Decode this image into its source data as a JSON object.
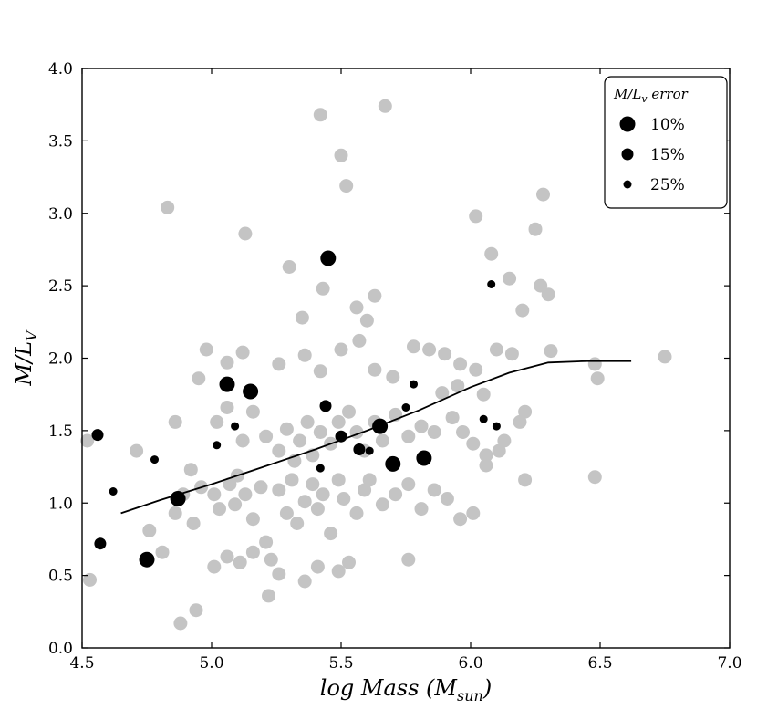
{
  "chart_data": {
    "type": "scatter",
    "title": "",
    "xlabel": {
      "pre": "log Mass (M",
      "sub": "sun",
      "post": ")"
    },
    "ylabel": {
      "pre": "M/L",
      "sub": "V"
    },
    "xlim": [
      4.5,
      7.0
    ],
    "ylim": [
      0.0,
      4.0
    ],
    "xticks": [
      4.5,
      5.0,
      5.5,
      6.0,
      6.5,
      7.0
    ],
    "xtick_labels": [
      "4.5",
      "5.0",
      "5.5",
      "6.0",
      "6.5",
      "7.0"
    ],
    "yticks": [
      0.0,
      0.5,
      1.0,
      1.5,
      2.0,
      2.5,
      3.0,
      3.5,
      4.0
    ],
    "ytick_labels": [
      "0.0",
      "0.5",
      "1.0",
      "1.5",
      "2.0",
      "2.5",
      "3.0",
      "3.5",
      "4.0"
    ],
    "grid": false,
    "colors": {
      "gray_marker": "#c4c4c4",
      "black_marker": "#000000",
      "line": "#000000",
      "axis": "#000000",
      "legend_border": "#000000",
      "background": "#ffffff"
    },
    "legend": {
      "position": "upper right",
      "title": {
        "pre": "M/L",
        "sub": "v",
        "post": " error"
      },
      "entries": [
        {
          "label": "10%",
          "radius": 8.5
        },
        {
          "label": "15%",
          "radius": 6.5
        },
        {
          "label": "25%",
          "radius": 4.5
        }
      ]
    },
    "series": [
      {
        "name": "gray-points",
        "color": "#c4c4c4",
        "marker_radius": 7.5,
        "points": [
          [
            5.42,
            3.68
          ],
          [
            5.67,
            3.74
          ],
          [
            5.5,
            3.4
          ],
          [
            5.52,
            3.19
          ],
          [
            4.83,
            3.04
          ],
          [
            6.28,
            3.13
          ],
          [
            6.25,
            2.89
          ],
          [
            6.02,
            2.98
          ],
          [
            5.13,
            2.86
          ],
          [
            6.08,
            2.72
          ],
          [
            5.3,
            2.63
          ],
          [
            6.15,
            2.55
          ],
          [
            6.27,
            2.5
          ],
          [
            6.3,
            2.44
          ],
          [
            5.43,
            2.48
          ],
          [
            5.63,
            2.43
          ],
          [
            5.56,
            2.35
          ],
          [
            5.6,
            2.26
          ],
          [
            5.35,
            2.28
          ],
          [
            6.2,
            2.33
          ],
          [
            4.98,
            2.06
          ],
          [
            5.06,
            1.97
          ],
          [
            5.12,
            2.04
          ],
          [
            4.95,
            1.86
          ],
          [
            5.26,
            1.96
          ],
          [
            5.36,
            2.02
          ],
          [
            5.42,
            1.91
          ],
          [
            5.5,
            2.06
          ],
          [
            5.57,
            2.12
          ],
          [
            5.63,
            1.92
          ],
          [
            5.78,
            2.08
          ],
          [
            5.84,
            2.06
          ],
          [
            5.9,
            2.03
          ],
          [
            5.96,
            1.96
          ],
          [
            6.02,
            1.92
          ],
          [
            6.1,
            2.06
          ],
          [
            6.16,
            2.03
          ],
          [
            6.31,
            2.05
          ],
          [
            6.48,
            1.96
          ],
          [
            6.49,
            1.86
          ],
          [
            6.75,
            2.01
          ],
          [
            5.7,
            1.87
          ],
          [
            5.95,
            1.81
          ],
          [
            6.05,
            1.75
          ],
          [
            4.52,
            1.43
          ],
          [
            4.71,
            1.36
          ],
          [
            4.86,
            1.56
          ],
          [
            4.92,
            1.23
          ],
          [
            5.02,
            1.56
          ],
          [
            5.06,
            1.66
          ],
          [
            5.1,
            1.19
          ],
          [
            5.12,
            1.43
          ],
          [
            5.16,
            1.63
          ],
          [
            5.21,
            1.46
          ],
          [
            5.26,
            1.36
          ],
          [
            5.29,
            1.51
          ],
          [
            5.32,
            1.29
          ],
          [
            5.34,
            1.43
          ],
          [
            5.37,
            1.56
          ],
          [
            5.39,
            1.33
          ],
          [
            5.42,
            1.49
          ],
          [
            5.46,
            1.41
          ],
          [
            5.49,
            1.56
          ],
          [
            5.53,
            1.63
          ],
          [
            5.56,
            1.49
          ],
          [
            5.59,
            1.36
          ],
          [
            5.63,
            1.56
          ],
          [
            5.66,
            1.43
          ],
          [
            5.71,
            1.61
          ],
          [
            5.76,
            1.46
          ],
          [
            5.81,
            1.53
          ],
          [
            5.86,
            1.49
          ],
          [
            5.89,
            1.76
          ],
          [
            5.93,
            1.59
          ],
          [
            5.97,
            1.49
          ],
          [
            6.01,
            1.41
          ],
          [
            6.06,
            1.33
          ],
          [
            6.13,
            1.43
          ],
          [
            6.19,
            1.56
          ],
          [
            6.21,
            1.63
          ],
          [
            6.48,
            1.18
          ],
          [
            4.53,
            0.47
          ],
          [
            4.76,
            0.81
          ],
          [
            4.81,
            0.66
          ],
          [
            4.86,
            0.93
          ],
          [
            4.89,
            1.06
          ],
          [
            4.93,
            0.86
          ],
          [
            4.96,
            1.11
          ],
          [
            5.01,
            1.06
          ],
          [
            5.03,
            0.96
          ],
          [
            5.07,
            1.13
          ],
          [
            5.09,
            0.99
          ],
          [
            5.13,
            1.06
          ],
          [
            5.16,
            0.89
          ],
          [
            5.19,
            1.11
          ],
          [
            5.21,
            0.73
          ],
          [
            5.23,
            0.61
          ],
          [
            5.26,
            1.09
          ],
          [
            5.29,
            0.93
          ],
          [
            5.31,
            1.16
          ],
          [
            5.33,
            0.86
          ],
          [
            5.36,
            1.01
          ],
          [
            5.39,
            1.13
          ],
          [
            5.41,
            0.96
          ],
          [
            5.43,
            1.06
          ],
          [
            5.46,
            0.79
          ],
          [
            5.49,
            1.16
          ],
          [
            5.51,
            1.03
          ],
          [
            5.56,
            0.93
          ],
          [
            5.59,
            1.09
          ],
          [
            5.61,
            1.16
          ],
          [
            5.66,
            0.99
          ],
          [
            5.71,
            1.06
          ],
          [
            5.76,
            1.13
          ],
          [
            5.81,
            0.96
          ],
          [
            5.86,
            1.09
          ],
          [
            5.91,
            1.03
          ],
          [
            5.96,
            0.89
          ],
          [
            6.01,
            0.93
          ],
          [
            6.06,
            1.26
          ],
          [
            6.11,
            1.36
          ],
          [
            6.21,
            1.16
          ],
          [
            5.01,
            0.56
          ],
          [
            5.06,
            0.63
          ],
          [
            5.11,
            0.59
          ],
          [
            5.16,
            0.66
          ],
          [
            5.26,
            0.51
          ],
          [
            5.36,
            0.46
          ],
          [
            5.41,
            0.56
          ],
          [
            5.49,
            0.53
          ],
          [
            5.53,
            0.59
          ],
          [
            5.76,
            0.61
          ],
          [
            4.88,
            0.17
          ],
          [
            4.94,
            0.26
          ],
          [
            5.22,
            0.36
          ]
        ]
      },
      {
        "name": "black-points-10pct-error",
        "color": "#000000",
        "marker_radius": 8.5,
        "points": [
          [
            4.75,
            0.61
          ],
          [
            4.87,
            1.03
          ],
          [
            5.06,
            1.82
          ],
          [
            5.15,
            1.77
          ],
          [
            5.45,
            2.69
          ],
          [
            5.65,
            1.53
          ],
          [
            5.7,
            1.27
          ],
          [
            5.82,
            1.31
          ]
        ]
      },
      {
        "name": "black-points-15pct-error",
        "color": "#000000",
        "marker_radius": 6.5,
        "points": [
          [
            4.56,
            1.47
          ],
          [
            4.57,
            0.72
          ],
          [
            5.44,
            1.67
          ],
          [
            5.5,
            1.46
          ],
          [
            5.57,
            1.37
          ]
        ]
      },
      {
        "name": "black-points-25pct-error",
        "color": "#000000",
        "marker_radius": 4.5,
        "points": [
          [
            4.62,
            1.08
          ],
          [
            4.78,
            1.3
          ],
          [
            5.02,
            1.4
          ],
          [
            5.09,
            1.53
          ],
          [
            5.42,
            1.24
          ],
          [
            5.61,
            1.36
          ],
          [
            5.75,
            1.66
          ],
          [
            5.78,
            1.82
          ],
          [
            6.05,
            1.58
          ],
          [
            6.08,
            2.51
          ],
          [
            6.1,
            1.53
          ]
        ]
      }
    ],
    "trend_line": {
      "name": "model-line",
      "color": "#000000",
      "width": 1.8,
      "points": [
        [
          4.65,
          0.93
        ],
        [
          4.8,
          1.02
        ],
        [
          5.0,
          1.13
        ],
        [
          5.2,
          1.25
        ],
        [
          5.4,
          1.37
        ],
        [
          5.6,
          1.5
        ],
        [
          5.8,
          1.64
        ],
        [
          6.0,
          1.8
        ],
        [
          6.15,
          1.9
        ],
        [
          6.3,
          1.97
        ],
        [
          6.45,
          1.98
        ],
        [
          6.62,
          1.98
        ]
      ]
    }
  }
}
